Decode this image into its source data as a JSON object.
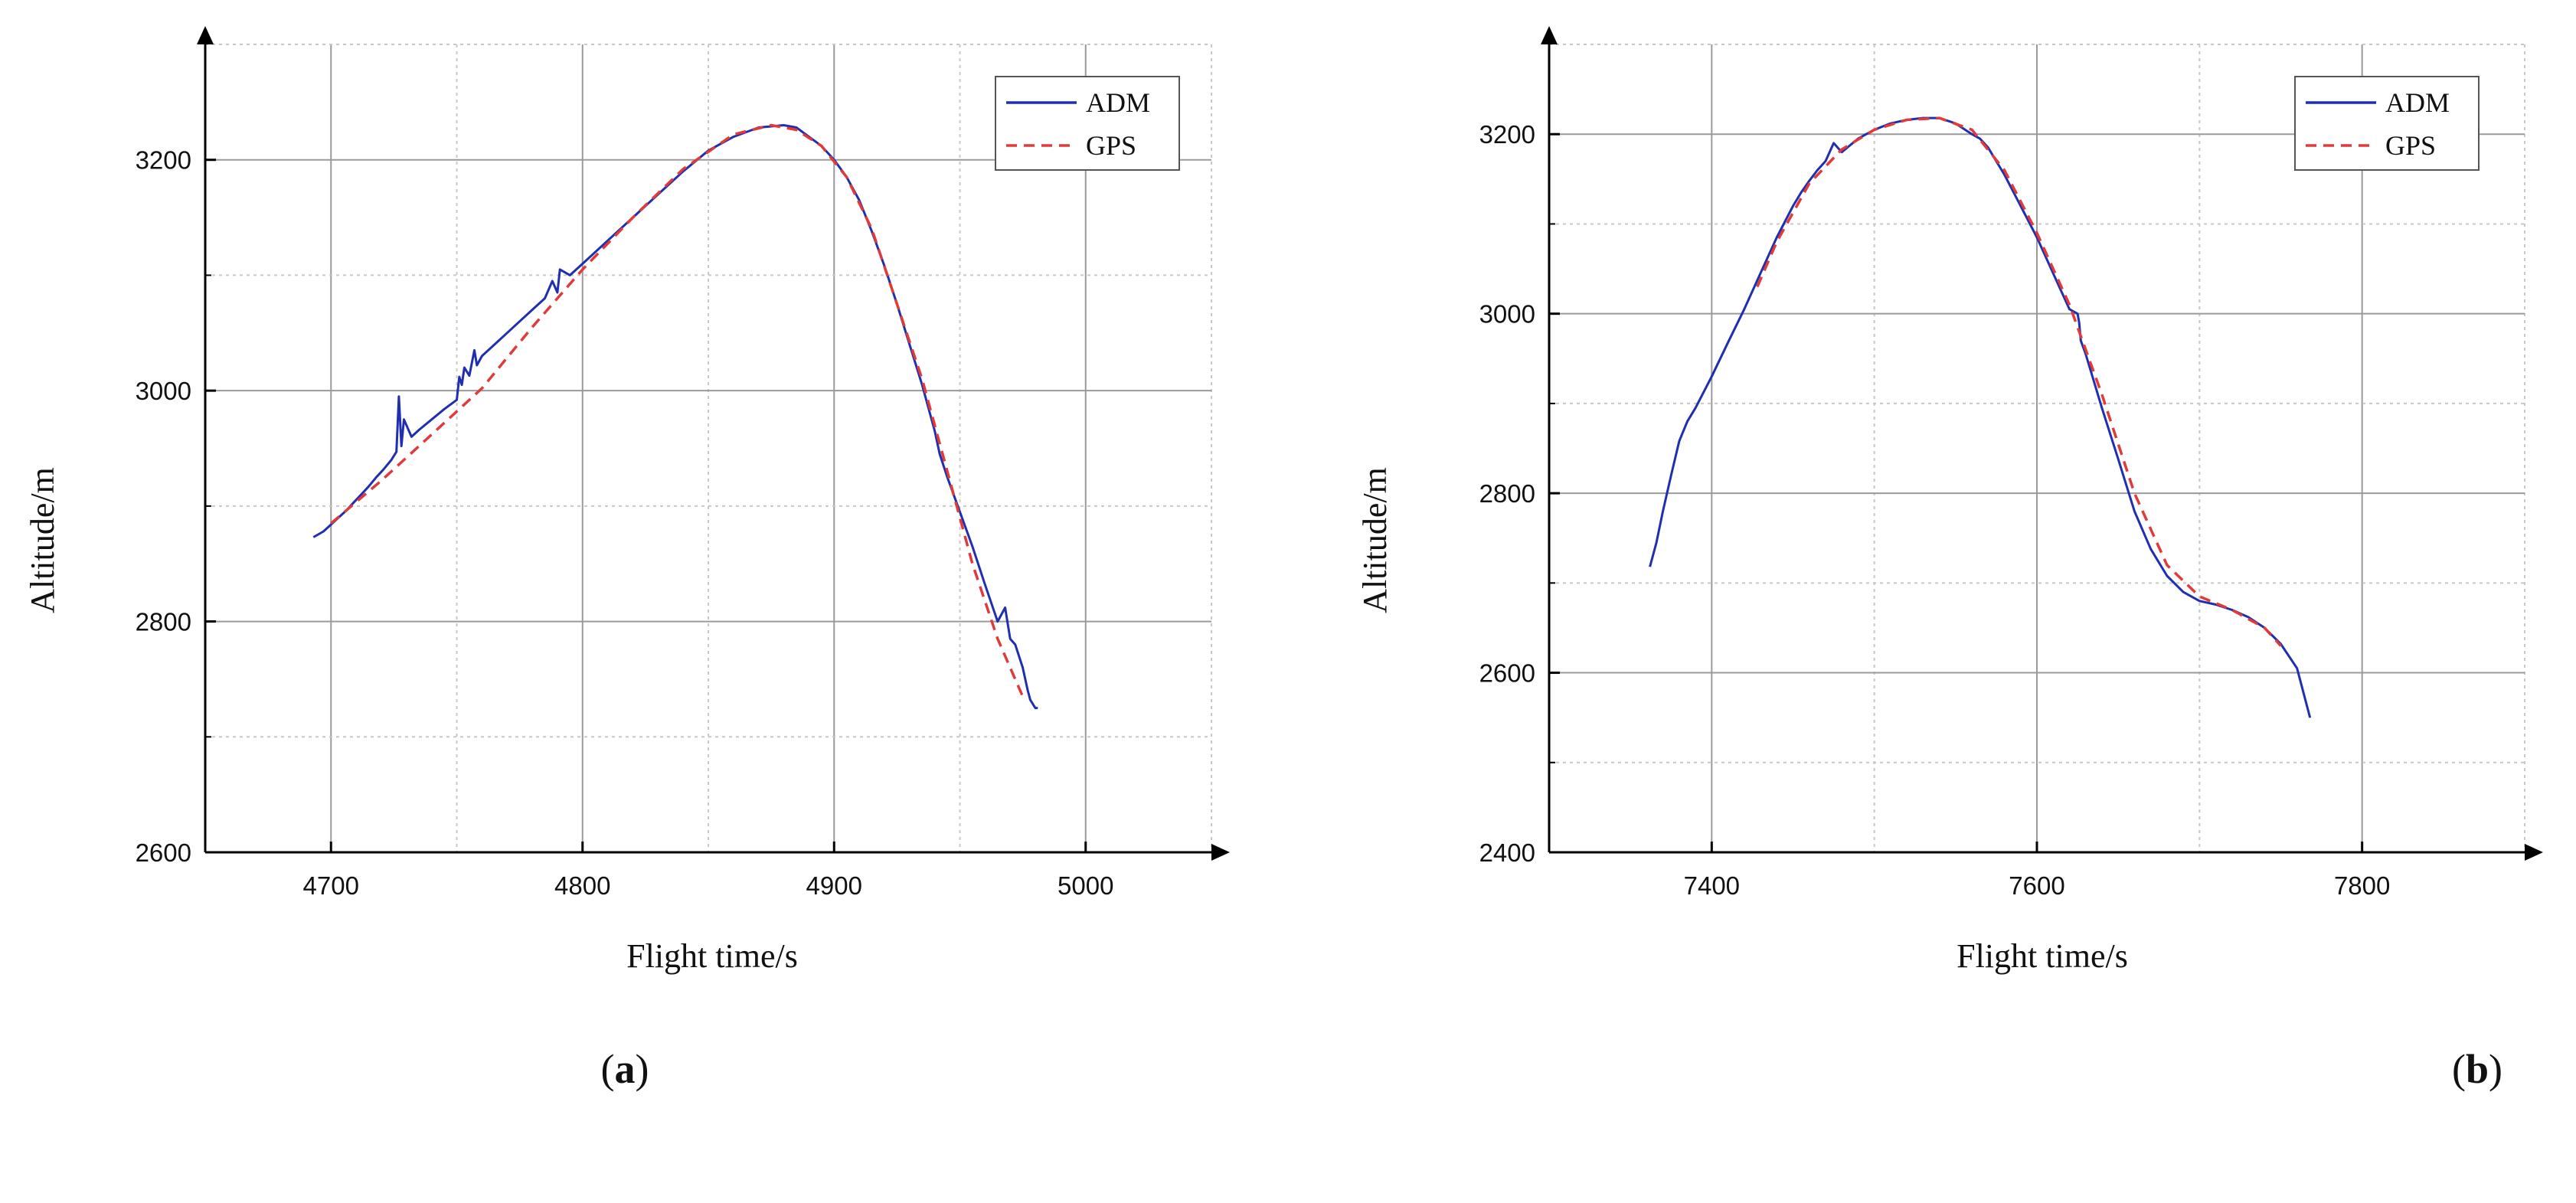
{
  "chart_data": [
    {
      "type": "line",
      "panel_label": "a",
      "xlabel": "Flight time/s",
      "ylabel": "Altitude/m",
      "xlim": [
        4650,
        5050
      ],
      "ylim": [
        2600,
        3300
      ],
      "xticks": [
        4700,
        4800,
        4900,
        5000
      ],
      "yticks": [
        2600,
        2800,
        3000,
        3200
      ],
      "grid": true,
      "legend_position": "top-right",
      "series": [
        {
          "name": "ADM",
          "color": "#1f2fb0",
          "style": "solid",
          "x": [
            4693,
            4697,
            4700,
            4703,
            4706,
            4709,
            4712,
            4715,
            4718,
            4721,
            4724,
            4726,
            4727,
            4728,
            4729,
            4732,
            4735,
            4740,
            4745,
            4750,
            4751,
            4752,
            4753,
            4755,
            4757,
            4758,
            4760,
            4765,
            4770,
            4775,
            4780,
            4785,
            4788,
            4790,
            4791,
            4795,
            4800,
            4810,
            4820,
            4830,
            4840,
            4850,
            4860,
            4870,
            4880,
            4885,
            4890,
            4895,
            4900,
            4905,
            4910,
            4915,
            4920,
            4925,
            4930,
            4935,
            4940,
            4942,
            4945,
            4950,
            4955,
            4960,
            4965,
            4968,
            4970,
            4972,
            4975,
            4977,
            4978,
            4980,
            4981
          ],
          "y": [
            2873,
            2878,
            2884,
            2890,
            2896,
            2903,
            2910,
            2917,
            2925,
            2932,
            2940,
            2947,
            2995,
            2952,
            2975,
            2960,
            2966,
            2975,
            2984,
            2992,
            3012,
            3005,
            3020,
            3013,
            3035,
            3022,
            3030,
            3040,
            3050,
            3060,
            3070,
            3080,
            3095,
            3085,
            3105,
            3100,
            3110,
            3130,
            3150,
            3170,
            3190,
            3208,
            3220,
            3228,
            3230,
            3228,
            3220,
            3212,
            3200,
            3185,
            3165,
            3138,
            3108,
            3075,
            3040,
            3005,
            2965,
            2945,
            2925,
            2895,
            2865,
            2832,
            2800,
            2812,
            2785,
            2780,
            2760,
            2740,
            2732,
            2725,
            2725
          ]
        },
        {
          "name": "GPS",
          "color": "#e03b3b",
          "style": "dashed",
          "x": [
            4700,
            4720,
            4740,
            4760,
            4780,
            4800,
            4820,
            4840,
            4860,
            4875,
            4885,
            4895,
            4905,
            4915,
            4925,
            4935,
            4945,
            4955,
            4965,
            4975
          ],
          "y": [
            2885,
            2922,
            2962,
            3002,
            3055,
            3105,
            3150,
            3192,
            3222,
            3230,
            3226,
            3212,
            3185,
            3140,
            3075,
            3010,
            2930,
            2850,
            2785,
            2735
          ]
        }
      ]
    },
    {
      "type": "line",
      "panel_label": "b",
      "xlabel": "Flight time/s",
      "ylabel": "Altitude/m",
      "xlim": [
        7300,
        7900
      ],
      "ylim": [
        2400,
        3300
      ],
      "xticks": [
        7400,
        7600,
        7800
      ],
      "yticks": [
        2400,
        2600,
        2800,
        3000,
        3200
      ],
      "grid": true,
      "legend_position": "top-right",
      "series": [
        {
          "name": "ADM",
          "color": "#1f2fb0",
          "style": "solid",
          "x": [
            7362,
            7366,
            7370,
            7375,
            7380,
            7385,
            7390,
            7400,
            7410,
            7420,
            7430,
            7440,
            7450,
            7455,
            7460,
            7465,
            7470,
            7475,
            7480,
            7490,
            7500,
            7510,
            7520,
            7530,
            7540,
            7550,
            7560,
            7565,
            7570,
            7580,
            7590,
            7600,
            7610,
            7620,
            7625,
            7626,
            7627,
            7630,
            7640,
            7650,
            7660,
            7670,
            7680,
            7690,
            7700,
            7710,
            7720,
            7730,
            7740,
            7750,
            7760,
            7768
          ],
          "y": [
            2718,
            2745,
            2780,
            2820,
            2858,
            2880,
            2895,
            2930,
            2968,
            3005,
            3045,
            3085,
            3120,
            3135,
            3148,
            3160,
            3170,
            3190,
            3180,
            3195,
            3205,
            3212,
            3216,
            3218,
            3218,
            3212,
            3200,
            3195,
            3185,
            3155,
            3120,
            3085,
            3045,
            3005,
            3000,
            2990,
            2970,
            2955,
            2895,
            2838,
            2780,
            2738,
            2708,
            2690,
            2680,
            2676,
            2670,
            2662,
            2650,
            2632,
            2605,
            2550
          ]
        },
        {
          "name": "GPS",
          "color": "#e03b3b",
          "style": "dashed",
          "x": [
            7428,
            7440,
            7460,
            7480,
            7500,
            7520,
            7540,
            7560,
            7580,
            7600,
            7620,
            7640,
            7660,
            7680,
            7700,
            7720,
            7740,
            7750
          ],
          "y": [
            3030,
            3080,
            3145,
            3183,
            3205,
            3216,
            3218,
            3205,
            3160,
            3090,
            3010,
            2910,
            2800,
            2720,
            2685,
            2670,
            2650,
            2630
          ]
        }
      ]
    }
  ]
}
